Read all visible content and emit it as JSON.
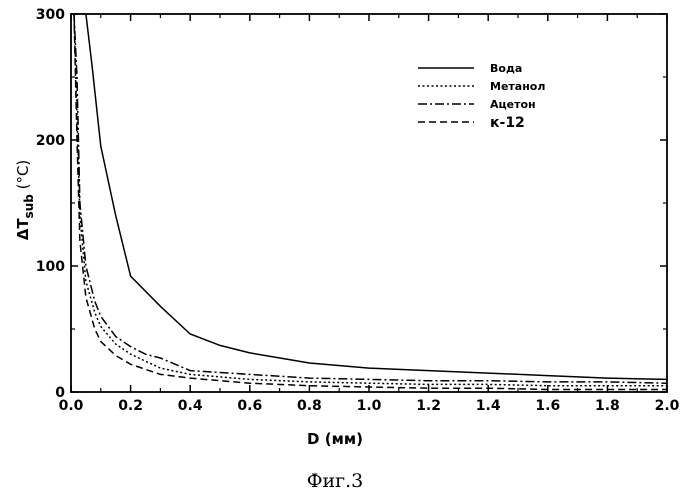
{
  "chart_data": {
    "type": "line",
    "xlabel": "D (мм)",
    "ylabel": "ΔTsub (°C)",
    "ylabel_main": "ΔT",
    "ylabel_sub": "sub",
    "ylabel_unit": " (°C)",
    "xlim": [
      0.0,
      2.0
    ],
    "ylim": [
      0,
      300
    ],
    "x_ticks": [
      "0.0",
      "0.2",
      "0.4",
      "0.6",
      "0.8",
      "1.0",
      "1.2",
      "1.4",
      "1.6",
      "1.8",
      "2.0"
    ],
    "y_ticks": [
      "0",
      "100",
      "200",
      "300"
    ],
    "grid": false,
    "legend_position": "top-right",
    "series": [
      {
        "name": "Вода",
        "style": "solid",
        "x": [
          0.05,
          0.07,
          0.1,
          0.15,
          0.2,
          0.3,
          0.4,
          0.5,
          0.6,
          0.8,
          1.0,
          1.2,
          1.4,
          1.6,
          1.8,
          2.0
        ],
        "y": [
          300,
          260,
          195,
          140,
          92,
          68,
          46,
          37,
          31,
          23,
          19,
          17,
          15,
          13,
          11,
          10
        ]
      },
      {
        "name": "Метанол",
        "style": "dotted",
        "x": [
          0.01,
          0.02,
          0.03,
          0.05,
          0.08,
          0.1,
          0.15,
          0.2,
          0.3,
          0.4,
          0.6,
          0.8,
          1.0,
          1.2,
          1.4,
          1.6,
          1.8,
          2.0
        ],
        "y": [
          300,
          220,
          140,
          88,
          63,
          52,
          38,
          30,
          19,
          14,
          10,
          8,
          7,
          6,
          6,
          5,
          5,
          5
        ]
      },
      {
        "name": "Ацетон",
        "style": "dashdot",
        "x": [
          0.01,
          0.02,
          0.03,
          0.05,
          0.08,
          0.1,
          0.15,
          0.2,
          0.25,
          0.3,
          0.4,
          0.6,
          0.8,
          1.0,
          1.2,
          1.4,
          1.6,
          1.8,
          2.0
        ],
        "y": [
          300,
          250,
          150,
          100,
          72,
          60,
          44,
          36,
          30,
          27,
          17,
          14,
          11,
          10,
          9,
          9,
          8,
          8,
          7
        ]
      },
      {
        "name": "к-12",
        "style": "dashed",
        "x": [
          0.01,
          0.02,
          0.03,
          0.05,
          0.08,
          0.1,
          0.15,
          0.2,
          0.3,
          0.4,
          0.6,
          0.8,
          1.0,
          1.2,
          1.4,
          1.6,
          1.8,
          2.0
        ],
        "y": [
          300,
          200,
          120,
          75,
          50,
          40,
          29,
          22,
          14,
          11,
          7,
          5,
          4,
          3,
          3,
          2,
          2,
          2
        ]
      }
    ]
  },
  "caption": "Фиг.3"
}
